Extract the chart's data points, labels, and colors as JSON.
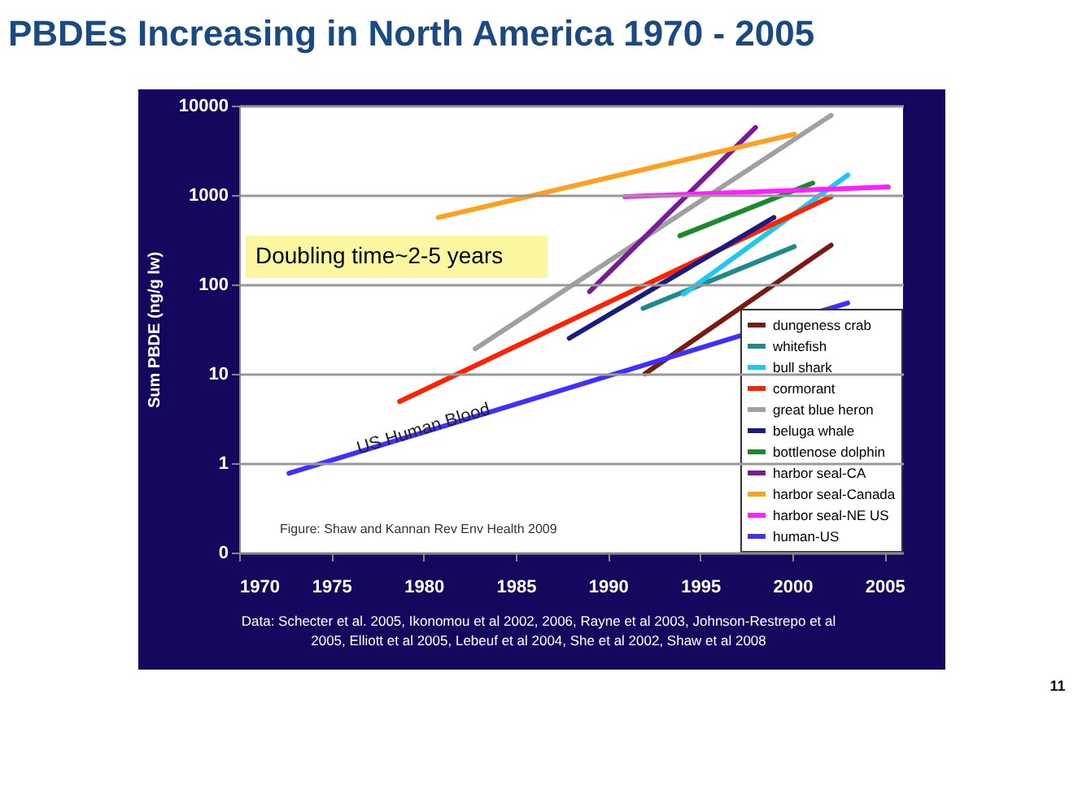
{
  "chart_data": {
    "type": "line",
    "title": "PBDEs Increasing in North America 1970 - 2005",
    "ylabel": "Sum PBDE (ng/g lw)",
    "xlim": [
      1970,
      2006
    ],
    "xticks": [
      1970,
      1975,
      1980,
      1985,
      1990,
      1995,
      2000,
      2005
    ],
    "ylim": [
      0.1,
      10000
    ],
    "yticks": [
      {
        "value": 0.1,
        "label": "0"
      },
      1,
      10,
      100,
      1000,
      10000
    ],
    "log": "y",
    "grid": "y",
    "legend": "bottom right",
    "line_style": "solid",
    "marker": "none",
    "series": [
      {
        "name": "dungeness crab",
        "color": "#7b1a0e",
        "x": [
          1992.0,
          2002.1
        ],
        "values": [
          10,
          275
        ]
      },
      {
        "name": "whitefish",
        "color": "#1f8a8a",
        "x": [
          1991.9,
          2000.1
        ],
        "values": [
          54,
          265
        ]
      },
      {
        "name": "bull shark",
        "color": "#1fc8f0",
        "x": [
          1994.1,
          2003.0
        ],
        "values": [
          78,
          1670
        ]
      },
      {
        "name": "cormorant",
        "color": "#ff2200",
        "x": [
          1978.7,
          2002.1
        ],
        "values": [
          4.9,
          960
        ]
      },
      {
        "name": "great blue heron",
        "color": "#a0a0a0",
        "x": [
          1982.8,
          2002.1
        ],
        "values": [
          19,
          7800
        ]
      },
      {
        "name": "beluga whale",
        "color": "#1a1a80",
        "x": [
          1987.9,
          1999.0
        ],
        "values": [
          25,
          560
        ]
      },
      {
        "name": "bottlenose dolphin",
        "color": "#1a8a2a",
        "x": [
          1993.9,
          2001.1
        ],
        "values": [
          350,
          1360
        ]
      },
      {
        "name": "harbor seal-CA",
        "color": "#7a1a9a",
        "x": [
          1989.0,
          1998.0
        ],
        "values": [
          83,
          5700
        ]
      },
      {
        "name": "harbor seal-Canada",
        "color": "#ffa020",
        "x": [
          1980.8,
          2000.1
        ],
        "values": [
          560,
          4800
        ]
      },
      {
        "name": "harbor seal-NE US",
        "color": "#ff20ff",
        "x": [
          1990.9,
          2005.2
        ],
        "values": [
          960,
          1230
        ]
      },
      {
        "name": "human-US",
        "color": "#4030ff",
        "x": [
          1972.7,
          2003.0
        ],
        "values": [
          0.77,
          62
        ]
      }
    ],
    "annotations": [
      "Doubling time~2-5 years",
      {
        "text": "US Human Blood",
        "x": 1980,
        "y": 2.4
      },
      "Figure: Shaw and Kannan Rev Env Health 2009",
      "Data: Schecter et al. 2005, Ikonomou et al 2002, 2006, Rayne et al 2003, Johnson-Restrepo et al 2005, Elliott et al 2005, Lebeuf et al 2004, She et al 2002, Shaw et al 2008",
      "11"
    ]
  }
}
